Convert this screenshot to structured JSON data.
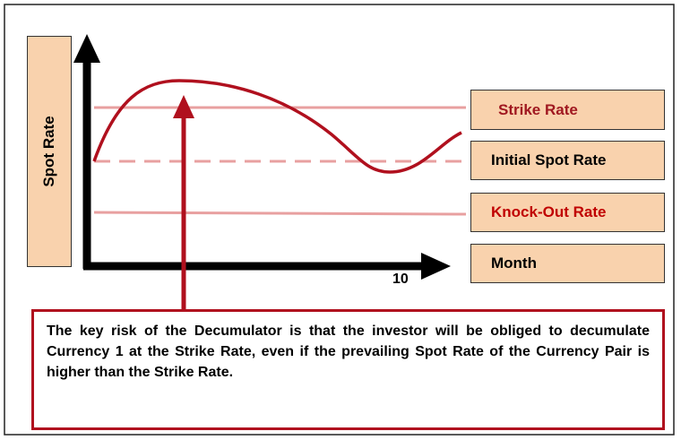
{
  "y_axis_label": "Spot Rate",
  "x_axis_tick": "10",
  "rate_labels": [
    "Strike Rate",
    "Initial Spot Rate",
    "Knock-Out Rate",
    "Month"
  ],
  "note": "The key risk of the Decumulator is that the investor will be obliged to decumulate Currency 1 at the Strike Rate, even if the prevailing Spot Rate of the Currency Pair is higher than the Strike Rate."
}
